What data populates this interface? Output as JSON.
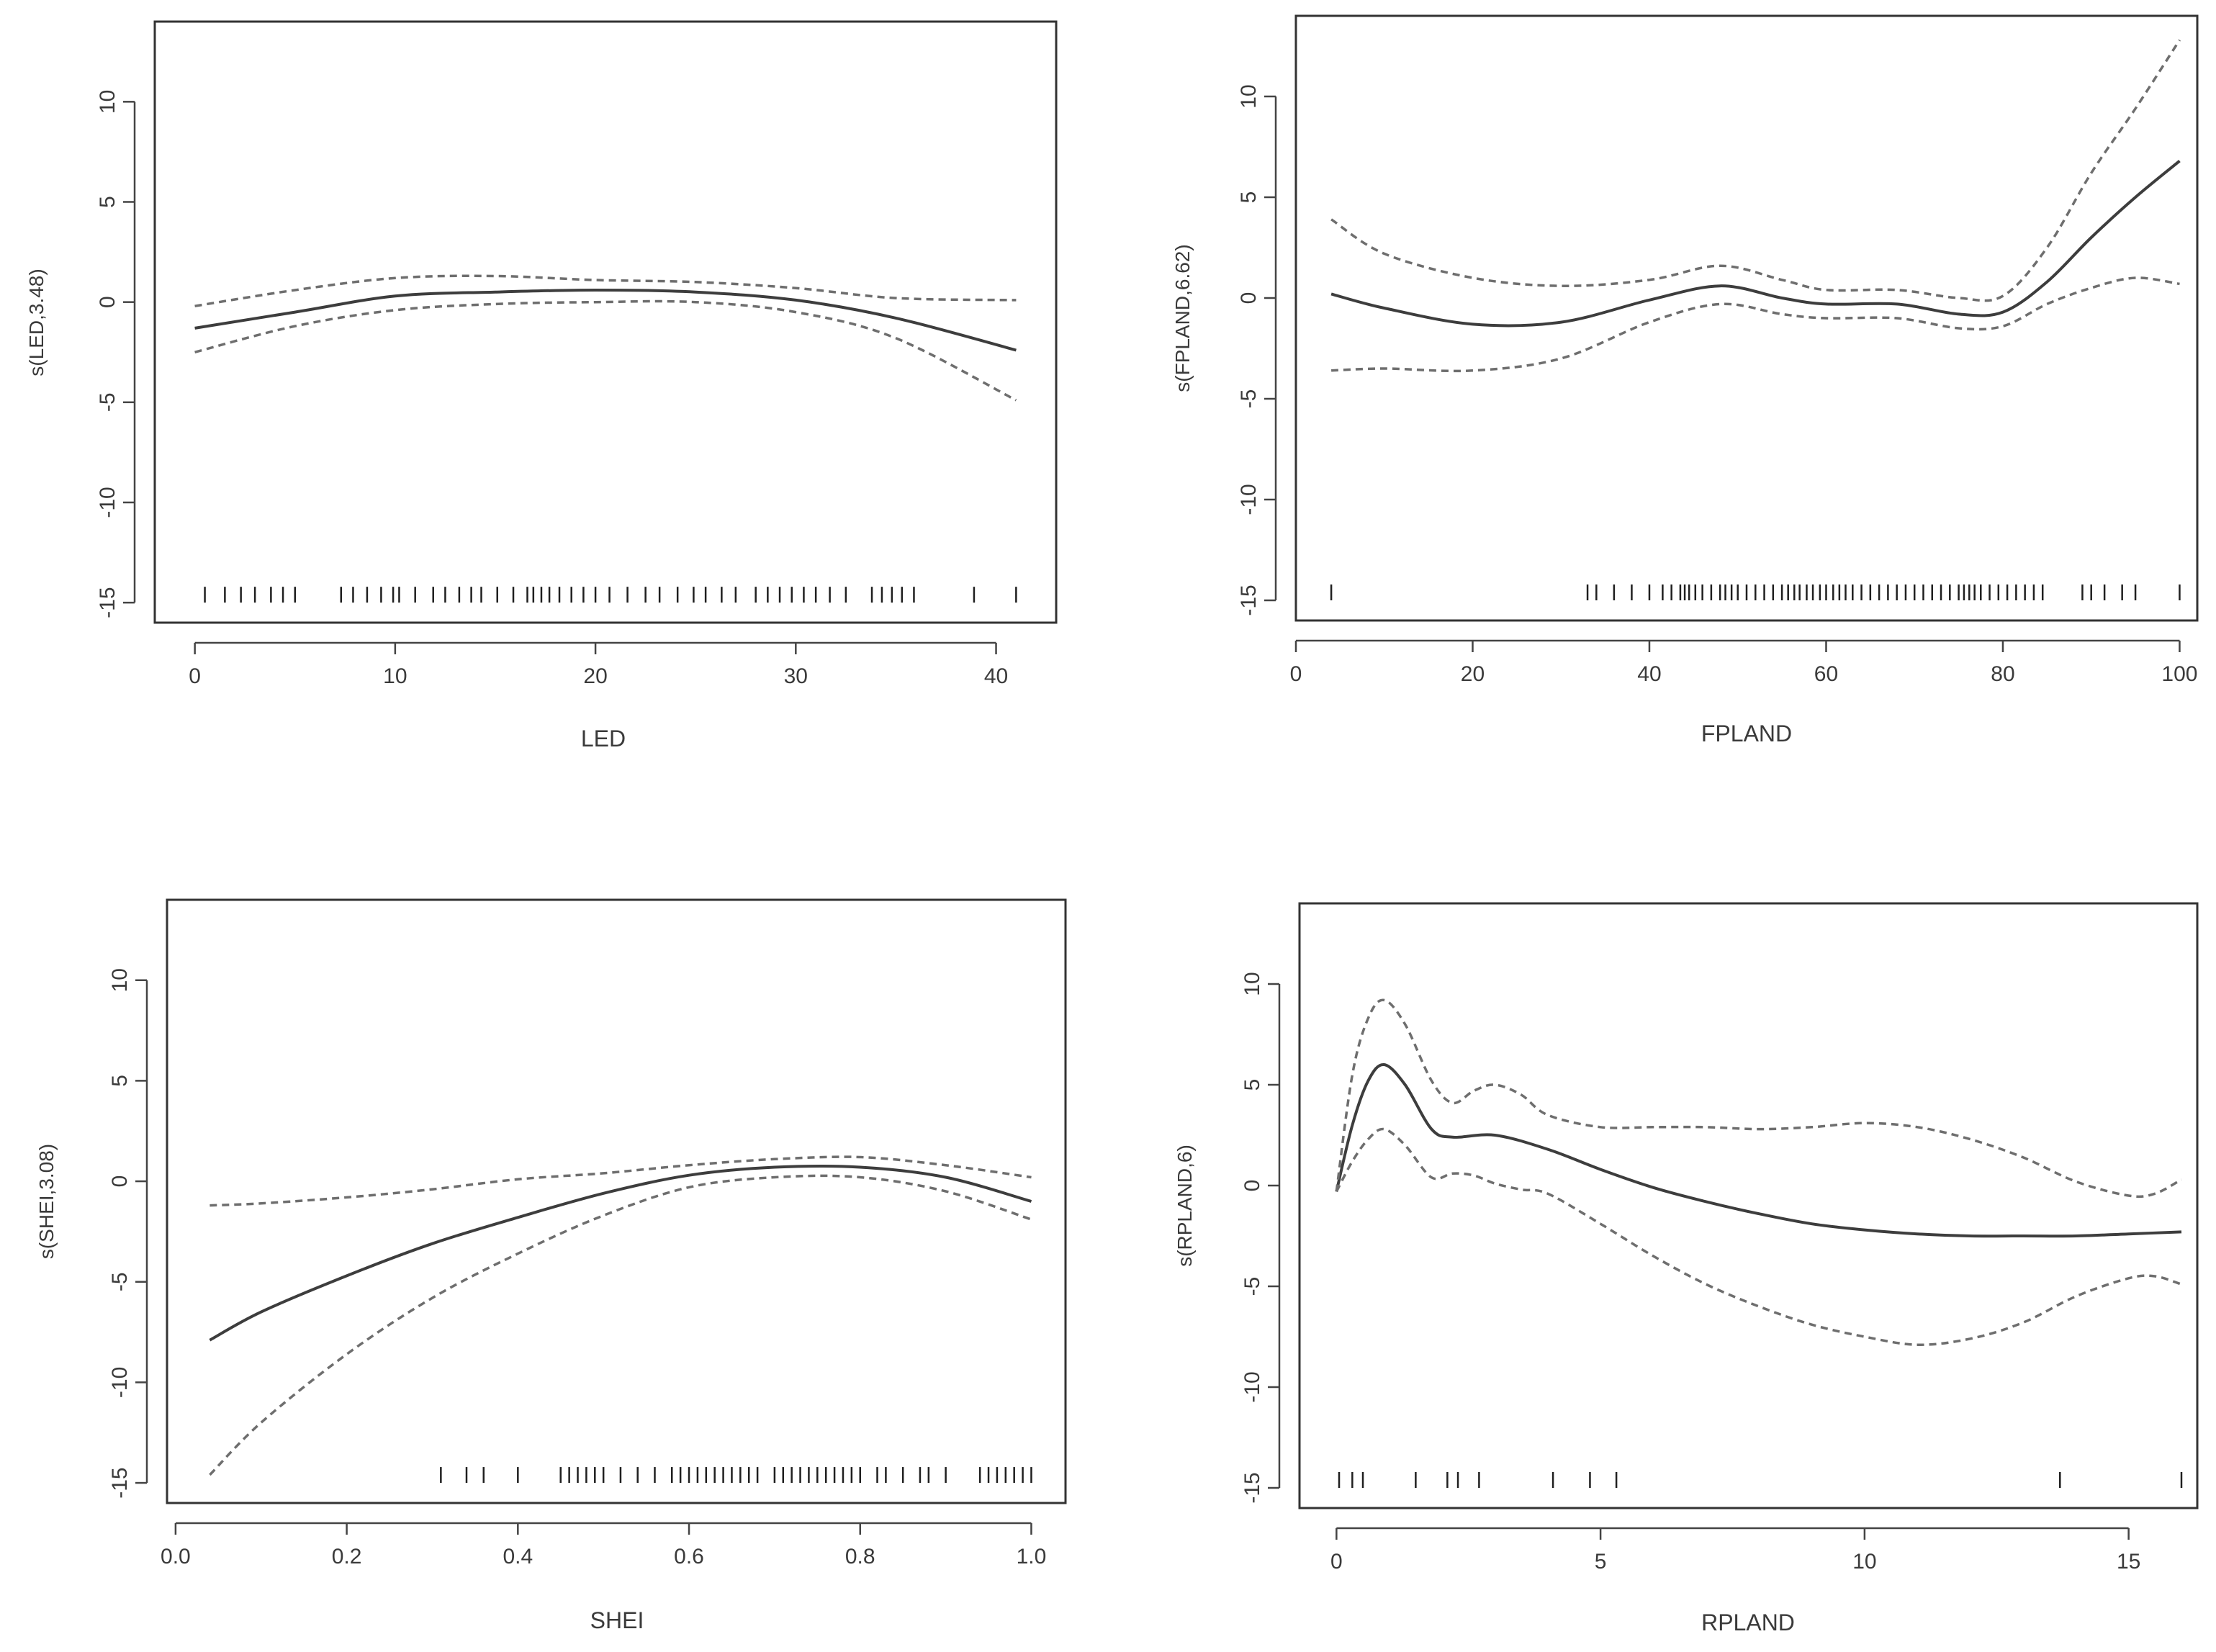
{
  "chart_data": [
    {
      "type": "line",
      "id": "led",
      "xlabel": "LED",
      "ylabel": "s(LED,3.48)",
      "xlim": [
        -2,
        43
      ],
      "ylim": [
        -16,
        14
      ],
      "xticks": [
        0,
        10,
        20,
        30,
        40
      ],
      "yticks": [
        -15,
        -10,
        -5,
        0,
        5,
        10
      ],
      "series": [
        {
          "name": "fit",
          "x": [
            0,
            5,
            10,
            15,
            20,
            25,
            30,
            35,
            41
          ],
          "y": [
            -1.3,
            -0.5,
            0.3,
            0.5,
            0.6,
            0.5,
            0.1,
            -0.8,
            -2.4
          ]
        },
        {
          "name": "upper",
          "x": [
            0,
            5,
            10,
            15,
            20,
            25,
            30,
            35,
            41
          ],
          "y": [
            -0.2,
            0.6,
            1.2,
            1.3,
            1.1,
            1.0,
            0.7,
            0.2,
            0.1
          ]
        },
        {
          "name": "lower",
          "x": [
            0,
            5,
            10,
            15,
            20,
            25,
            30,
            35,
            41
          ],
          "y": [
            -2.5,
            -1.2,
            -0.4,
            -0.1,
            0.0,
            0.0,
            -0.5,
            -1.8,
            -4.9
          ]
        }
      ],
      "rug": [
        0.5,
        1.5,
        2.3,
        3.0,
        3.8,
        4.4,
        5.0,
        7.3,
        7.9,
        8.6,
        9.3,
        9.9,
        10.2,
        11.0,
        11.9,
        12.5,
        13.2,
        13.8,
        14.3,
        15.1,
        15.9,
        16.6,
        16.9,
        17.3,
        17.7,
        18.2,
        18.8,
        19.4,
        20.0,
        20.7,
        21.6,
        22.5,
        23.2,
        24.1,
        24.9,
        25.5,
        26.3,
        27.0,
        28.0,
        28.6,
        29.2,
        29.8,
        30.4,
        31.0,
        31.7,
        32.5,
        33.8,
        34.3,
        34.8,
        35.3,
        35.9,
        38.9,
        41.0
      ]
    },
    {
      "type": "line",
      "id": "fpland",
      "xlabel": "FPLAND",
      "ylabel": "s(FPLAND,6.62)",
      "xlim": [
        0,
        102
      ],
      "ylim": [
        -16,
        14
      ],
      "xticks": [
        0,
        20,
        40,
        60,
        80,
        100
      ],
      "yticks": [
        -15,
        -10,
        -5,
        0,
        5,
        10
      ],
      "series": [
        {
          "name": "fit",
          "x": [
            4,
            10,
            20,
            30,
            40,
            48,
            55,
            60,
            68,
            75,
            80,
            85,
            90,
            95,
            100
          ],
          "y": [
            0.2,
            -0.5,
            -1.3,
            -1.2,
            -0.1,
            0.6,
            0.0,
            -0.3,
            -0.3,
            -0.8,
            -0.7,
            0.8,
            3.0,
            5.0,
            6.8
          ]
        },
        {
          "name": "upper",
          "x": [
            4,
            10,
            20,
            30,
            40,
            48,
            55,
            60,
            68,
            75,
            80,
            85,
            90,
            95,
            100
          ],
          "y": [
            3.9,
            2.2,
            1.0,
            0.6,
            0.9,
            1.6,
            0.9,
            0.4,
            0.4,
            0.0,
            0.1,
            2.5,
            6.2,
            9.4,
            12.8
          ]
        },
        {
          "name": "lower",
          "x": [
            4,
            10,
            20,
            30,
            40,
            48,
            55,
            60,
            68,
            75,
            80,
            85,
            90,
            95,
            100
          ],
          "y": [
            -3.6,
            -3.5,
            -3.6,
            -3.0,
            -1.2,
            -0.3,
            -0.8,
            -1.0,
            -1.0,
            -1.5,
            -1.4,
            -0.3,
            0.5,
            1.0,
            0.7
          ]
        }
      ],
      "rug": [
        4.0,
        33.0,
        34.0,
        36.0,
        38.0,
        40.0,
        41.5,
        42.5,
        43.5,
        44.0,
        44.5,
        45.2,
        46.0,
        47.0,
        48.0,
        48.6,
        49.3,
        50.0,
        51.0,
        52.0,
        53.0,
        54.0,
        55.0,
        55.7,
        56.4,
        57.0,
        57.8,
        58.5,
        59.3,
        60.0,
        60.8,
        61.5,
        62.2,
        63.0,
        64.0,
        65.0,
        66.0,
        67.0,
        68.0,
        69.0,
        70.0,
        71.0,
        72.0,
        73.0,
        74.0,
        75.0,
        75.6,
        76.2,
        76.8,
        77.5,
        78.5,
        79.5,
        80.5,
        81.5,
        82.5,
        83.5,
        84.5,
        89.0,
        90.0,
        91.5,
        93.5,
        95.0,
        100.0
      ]
    },
    {
      "type": "line",
      "id": "shei",
      "xlabel": "SHEI",
      "ylabel": "s(SHEI,3.08)",
      "xlim": [
        -0.01,
        1.04
      ],
      "ylim": [
        -16,
        14
      ],
      "xticks": [
        0.0,
        0.2,
        0.4,
        0.6,
        0.8,
        1.0
      ],
      "xtick_labels": [
        "0.0",
        "0.2",
        "0.4",
        "0.6",
        "0.8",
        "1.0"
      ],
      "yticks": [
        -15,
        -10,
        -5,
        0,
        5,
        10
      ],
      "series": [
        {
          "name": "fit",
          "x": [
            0.04,
            0.1,
            0.2,
            0.3,
            0.4,
            0.5,
            0.6,
            0.7,
            0.8,
            0.9,
            1.0
          ],
          "y": [
            -7.9,
            -6.5,
            -4.7,
            -3.1,
            -1.8,
            -0.6,
            0.3,
            0.7,
            0.7,
            0.2,
            -1.0
          ]
        },
        {
          "name": "upper",
          "x": [
            0.04,
            0.1,
            0.2,
            0.3,
            0.4,
            0.5,
            0.6,
            0.7,
            0.8,
            0.9,
            1.0
          ],
          "y": [
            -1.2,
            -1.1,
            -0.8,
            -0.4,
            0.1,
            0.4,
            0.8,
            1.1,
            1.2,
            0.8,
            0.2
          ]
        },
        {
          "name": "lower",
          "x": [
            0.04,
            0.1,
            0.2,
            0.3,
            0.4,
            0.5,
            0.6,
            0.7,
            0.8,
            0.9,
            1.0
          ],
          "y": [
            -14.6,
            -12.0,
            -8.6,
            -5.8,
            -3.6,
            -1.7,
            -0.3,
            0.2,
            0.2,
            -0.5,
            -1.9
          ]
        }
      ],
      "rug": [
        0.31,
        0.34,
        0.36,
        0.4,
        0.45,
        0.46,
        0.47,
        0.48,
        0.49,
        0.5,
        0.52,
        0.54,
        0.56,
        0.58,
        0.59,
        0.6,
        0.61,
        0.62,
        0.63,
        0.64,
        0.65,
        0.66,
        0.67,
        0.68,
        0.7,
        0.71,
        0.72,
        0.73,
        0.74,
        0.75,
        0.76,
        0.77,
        0.78,
        0.79,
        0.8,
        0.82,
        0.83,
        0.85,
        0.87,
        0.88,
        0.9,
        0.94,
        0.95,
        0.96,
        0.97,
        0.98,
        0.99,
        1.0
      ]
    },
    {
      "type": "line",
      "id": "rpland",
      "xlabel": "RPLAND",
      "ylabel": "s(RPLAND,6)",
      "xlim": [
        -0.7,
        16.3
      ],
      "ylim": [
        -16,
        14
      ],
      "xticks": [
        0,
        5,
        10,
        15
      ],
      "yticks": [
        -15,
        -10,
        -5,
        0,
        5,
        10
      ],
      "series": [
        {
          "name": "fit",
          "x": [
            0.0,
            0.3,
            0.6,
            0.9,
            1.3,
            1.8,
            2.2,
            3.0,
            4.0,
            5.0,
            6.0,
            7.0,
            8.0,
            9.0,
            10.0,
            11.0,
            12.0,
            13.0,
            14.0,
            15.0,
            16.0
          ],
          "y": [
            -0.3,
            3.0,
            5.2,
            6.0,
            5.0,
            2.8,
            2.4,
            2.5,
            1.8,
            0.8,
            -0.1,
            -0.8,
            -1.4,
            -1.9,
            -2.2,
            -2.4,
            -2.5,
            -2.5,
            -2.5,
            -2.4,
            -2.3
          ]
        },
        {
          "name": "upper",
          "x": [
            0.0,
            0.3,
            0.6,
            0.9,
            1.3,
            1.8,
            2.2,
            2.6,
            3.0,
            3.5,
            4.0,
            5.0,
            6.0,
            7.0,
            8.0,
            9.0,
            10.0,
            11.0,
            12.0,
            13.0,
            14.0,
            15.0,
            15.5,
            16.0
          ],
          "y": [
            -0.3,
            5.5,
            8.3,
            9.2,
            8.0,
            5.2,
            4.1,
            4.7,
            5.0,
            4.5,
            3.5,
            2.9,
            2.9,
            2.9,
            2.8,
            2.9,
            3.1,
            2.9,
            2.3,
            1.4,
            0.2,
            -0.5,
            -0.4,
            0.3
          ]
        },
        {
          "name": "lower",
          "x": [
            0.0,
            0.3,
            0.6,
            0.9,
            1.3,
            1.8,
            2.2,
            2.6,
            3.0,
            3.5,
            4.0,
            5.0,
            6.0,
            7.0,
            8.0,
            9.0,
            10.0,
            11.0,
            12.0,
            13.0,
            14.0,
            15.0,
            15.5,
            16.0
          ],
          "y": [
            -0.3,
            1.2,
            2.3,
            2.8,
            2.0,
            0.4,
            0.6,
            0.5,
            0.1,
            -0.2,
            -0.4,
            -1.9,
            -3.5,
            -4.9,
            -6.0,
            -6.9,
            -7.5,
            -7.9,
            -7.6,
            -6.8,
            -5.5,
            -4.6,
            -4.5,
            -4.9
          ]
        }
      ],
      "rug": [
        0.05,
        0.3,
        0.5,
        1.5,
        2.1,
        2.3,
        2.7,
        4.1,
        4.8,
        5.3,
        13.7,
        16.0
      ]
    }
  ]
}
